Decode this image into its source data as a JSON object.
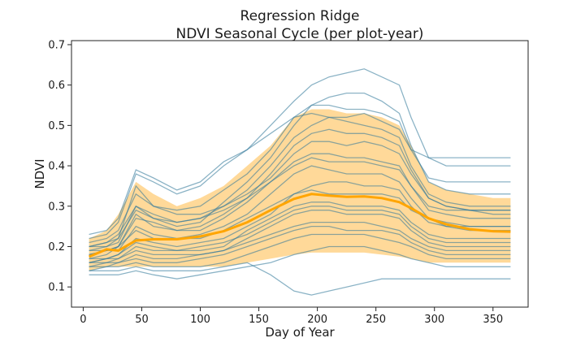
{
  "chart_data": {
    "type": "line",
    "title_lines": [
      "Regression Ridge",
      "NDVI Seasonal Cycle (per plot-year)"
    ],
    "xlabel": "Day of Year",
    "ylabel": "NDVI",
    "xlim": [
      -10,
      380
    ],
    "ylim": [
      0.05,
      0.71
    ],
    "xticks": [
      0,
      50,
      100,
      150,
      200,
      250,
      300,
      350
    ],
    "yticks": [
      0.1,
      0.2,
      0.3,
      0.4,
      0.5,
      0.6,
      0.7
    ],
    "xtick_labels": [
      "0",
      "50",
      "100",
      "150",
      "200",
      "250",
      "300",
      "350"
    ],
    "ytick_labels": [
      "0.1",
      "0.2",
      "0.3",
      "0.4",
      "0.5",
      "0.6",
      "0.7"
    ],
    "grid": false,
    "colors": {
      "traces": "#1f77b4",
      "traces_overlap": "#5a7f6f",
      "band": "#ffd080",
      "mean": "#ffa500"
    },
    "x": [
      5,
      20,
      30,
      45,
      60,
      80,
      100,
      120,
      140,
      160,
      180,
      195,
      210,
      225,
      240,
      255,
      270,
      280,
      295,
      310,
      330,
      350,
      365
    ],
    "mean": [
      0.175,
      0.193,
      0.19,
      0.215,
      0.218,
      0.218,
      0.225,
      0.238,
      0.26,
      0.29,
      0.318,
      0.33,
      0.326,
      0.323,
      0.324,
      0.32,
      0.31,
      0.295,
      0.27,
      0.255,
      0.243,
      0.238,
      0.237
    ],
    "band_upper": [
      0.22,
      0.24,
      0.28,
      0.36,
      0.33,
      0.3,
      0.32,
      0.35,
      0.4,
      0.45,
      0.52,
      0.54,
      0.54,
      0.53,
      0.53,
      0.52,
      0.5,
      0.45,
      0.36,
      0.34,
      0.33,
      0.32,
      0.32
    ],
    "band_lower": [
      0.14,
      0.15,
      0.15,
      0.15,
      0.15,
      0.15,
      0.15,
      0.15,
      0.16,
      0.17,
      0.18,
      0.185,
      0.185,
      0.185,
      0.185,
      0.18,
      0.175,
      0.17,
      0.16,
      0.16,
      0.16,
      0.16,
      0.16
    ],
    "series": [
      {
        "values": [
          0.18,
          0.19,
          0.2,
          0.24,
          0.22,
          0.22,
          0.22,
          0.24,
          0.27,
          0.3,
          0.33,
          0.34,
          0.33,
          0.33,
          0.33,
          0.33,
          0.32,
          0.29,
          0.27,
          0.25,
          0.24,
          0.24,
          0.24
        ]
      },
      {
        "values": [
          0.2,
          0.21,
          0.22,
          0.35,
          0.3,
          0.28,
          0.28,
          0.3,
          0.34,
          0.4,
          0.47,
          0.5,
          0.52,
          0.51,
          0.5,
          0.49,
          0.47,
          0.4,
          0.33,
          0.31,
          0.3,
          0.3,
          0.3
        ]
      },
      {
        "values": [
          0.15,
          0.16,
          0.16,
          0.18,
          0.17,
          0.17,
          0.18,
          0.19,
          0.21,
          0.23,
          0.25,
          0.26,
          0.26,
          0.26,
          0.26,
          0.25,
          0.24,
          0.22,
          0.2,
          0.19,
          0.19,
          0.19,
          0.19
        ]
      },
      {
        "values": [
          0.22,
          0.23,
          0.26,
          0.38,
          0.36,
          0.33,
          0.35,
          0.4,
          0.44,
          0.5,
          0.56,
          0.6,
          0.62,
          0.63,
          0.64,
          0.62,
          0.6,
          0.52,
          0.42,
          0.4,
          0.4,
          0.4,
          0.4
        ]
      },
      {
        "values": [
          0.13,
          0.13,
          0.13,
          0.14,
          0.13,
          0.12,
          0.13,
          0.14,
          0.15,
          0.16,
          0.18,
          0.19,
          0.2,
          0.2,
          0.2,
          0.19,
          0.18,
          0.17,
          0.16,
          0.15,
          0.15,
          0.15,
          0.15
        ]
      },
      {
        "values": [
          0.17,
          0.18,
          0.2,
          0.28,
          0.25,
          0.24,
          0.24,
          0.27,
          0.31,
          0.36,
          0.41,
          0.43,
          0.43,
          0.42,
          0.42,
          0.41,
          0.4,
          0.35,
          0.29,
          0.28,
          0.27,
          0.27,
          0.27
        ]
      },
      {
        "values": [
          0.16,
          0.17,
          0.17,
          0.2,
          0.19,
          0.19,
          0.19,
          0.2,
          0.24,
          0.27,
          0.3,
          0.31,
          0.31,
          0.3,
          0.3,
          0.3,
          0.29,
          0.26,
          0.23,
          0.22,
          0.22,
          0.22,
          0.22
        ]
      },
      {
        "values": [
          0.19,
          0.2,
          0.21,
          0.3,
          0.27,
          0.25,
          0.26,
          0.31,
          0.36,
          0.42,
          0.5,
          0.55,
          0.57,
          0.58,
          0.58,
          0.56,
          0.53,
          0.45,
          0.36,
          0.34,
          0.33,
          0.33,
          0.33
        ]
      },
      {
        "values": [
          0.14,
          0.14,
          0.14,
          0.15,
          0.14,
          0.14,
          0.14,
          0.15,
          0.16,
          0.13,
          0.09,
          0.08,
          0.09,
          0.1,
          0.11,
          0.12,
          0.12,
          0.12,
          0.12,
          0.12,
          0.12,
          0.12,
          0.12
        ]
      },
      {
        "values": [
          0.21,
          0.22,
          0.24,
          0.33,
          0.3,
          0.29,
          0.3,
          0.34,
          0.38,
          0.44,
          0.52,
          0.55,
          0.55,
          0.54,
          0.54,
          0.53,
          0.51,
          0.44,
          0.37,
          0.36,
          0.36,
          0.36,
          0.36
        ]
      },
      {
        "values": [
          0.16,
          0.17,
          0.18,
          0.22,
          0.21,
          0.2,
          0.21,
          0.22,
          0.25,
          0.28,
          0.33,
          0.35,
          0.36,
          0.36,
          0.35,
          0.35,
          0.34,
          0.3,
          0.26,
          0.25,
          0.25,
          0.25,
          0.25
        ]
      },
      {
        "values": [
          0.18,
          0.19,
          0.19,
          0.25,
          0.23,
          0.22,
          0.23,
          0.25,
          0.28,
          0.33,
          0.38,
          0.4,
          0.39,
          0.38,
          0.38,
          0.38,
          0.36,
          0.32,
          0.27,
          0.26,
          0.25,
          0.25,
          0.25
        ]
      },
      {
        "values": [
          0.2,
          0.21,
          0.23,
          0.3,
          0.28,
          0.26,
          0.27,
          0.3,
          0.33,
          0.37,
          0.43,
          0.46,
          0.46,
          0.45,
          0.46,
          0.45,
          0.43,
          0.38,
          0.32,
          0.3,
          0.29,
          0.29,
          0.29
        ]
      },
      {
        "values": [
          0.15,
          0.15,
          0.16,
          0.17,
          0.16,
          0.16,
          0.17,
          0.18,
          0.2,
          0.22,
          0.24,
          0.25,
          0.25,
          0.24,
          0.24,
          0.24,
          0.23,
          0.21,
          0.19,
          0.18,
          0.18,
          0.18,
          0.18
        ]
      },
      {
        "values": [
          0.23,
          0.24,
          0.27,
          0.39,
          0.37,
          0.34,
          0.36,
          0.41,
          0.44,
          0.48,
          0.52,
          0.53,
          0.52,
          0.52,
          0.53,
          0.51,
          0.49,
          0.44,
          0.42,
          0.42,
          0.42,
          0.42,
          0.42
        ]
      },
      {
        "values": [
          0.17,
          0.17,
          0.18,
          0.21,
          0.2,
          0.19,
          0.2,
          0.21,
          0.23,
          0.26,
          0.29,
          0.3,
          0.3,
          0.29,
          0.29,
          0.29,
          0.28,
          0.25,
          0.22,
          0.21,
          0.21,
          0.21,
          0.21
        ]
      },
      {
        "values": [
          0.19,
          0.19,
          0.2,
          0.27,
          0.26,
          0.24,
          0.25,
          0.28,
          0.32,
          0.38,
          0.45,
          0.48,
          0.49,
          0.48,
          0.48,
          0.47,
          0.45,
          0.39,
          0.32,
          0.3,
          0.29,
          0.29,
          0.29
        ]
      },
      {
        "values": [
          0.14,
          0.15,
          0.15,
          0.16,
          0.15,
          0.15,
          0.15,
          0.16,
          0.18,
          0.2,
          0.22,
          0.23,
          0.23,
          0.23,
          0.23,
          0.22,
          0.21,
          0.2,
          0.18,
          0.17,
          0.17,
          0.17,
          0.17
        ]
      },
      {
        "values": [
          0.2,
          0.2,
          0.22,
          0.29,
          0.27,
          0.26,
          0.27,
          0.29,
          0.32,
          0.36,
          0.4,
          0.42,
          0.41,
          0.41,
          0.41,
          0.4,
          0.39,
          0.35,
          0.3,
          0.29,
          0.29,
          0.28,
          0.28
        ]
      },
      {
        "values": [
          0.16,
          0.16,
          0.17,
          0.19,
          0.18,
          0.18,
          0.18,
          0.19,
          0.22,
          0.25,
          0.28,
          0.29,
          0.29,
          0.28,
          0.28,
          0.28,
          0.27,
          0.24,
          0.21,
          0.2,
          0.2,
          0.2,
          0.2
        ]
      }
    ]
  }
}
